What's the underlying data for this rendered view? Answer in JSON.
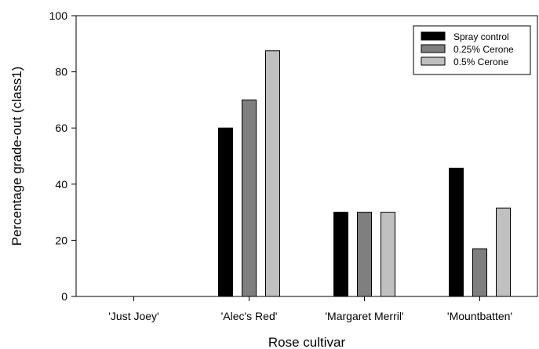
{
  "chart_data": {
    "type": "bar",
    "title": "",
    "xlabel": "Rose cultivar",
    "ylabel": "Percentage grade-out (class1)",
    "ylim": [
      0,
      100
    ],
    "yticks": [
      0,
      20,
      40,
      60,
      80,
      100
    ],
    "categories": [
      "'Just Joey'",
      "'Alec's Red'",
      "'Margaret Merril'",
      "'Mountbatten'"
    ],
    "series": [
      {
        "name": "Spray control",
        "color": "#000000",
        "values": [
          0,
          60,
          30,
          45.7
        ]
      },
      {
        "name": "0.25% Cerone",
        "color": "#7f7f7f",
        "values": [
          0,
          70,
          30,
          17
        ]
      },
      {
        "name": "0.5% Cerone",
        "color": "#c0c0c0",
        "values": [
          0,
          87.5,
          30,
          31.5
        ]
      }
    ],
    "grid": false,
    "legend_position": "top-right"
  }
}
